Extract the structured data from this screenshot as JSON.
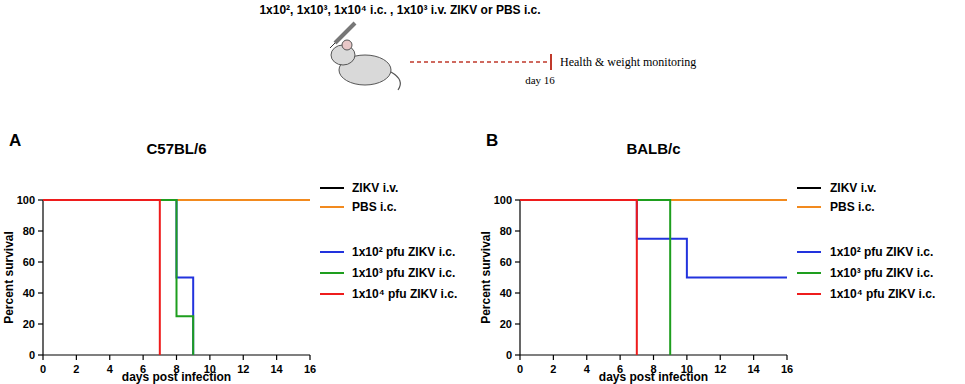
{
  "header": {
    "protocol": "1x10², 1x10³, 1x10⁴ i.c. , 1x10³ i.v. ZIKV or PBS i.c.",
    "monitoring": "Health & weight monitoring",
    "end": "day 16"
  },
  "chart_data": [
    {
      "type": "line",
      "panel": "A",
      "title": "C57BL/6",
      "x_label": "days post infection",
      "y_label": "Percent survival",
      "xlim": [
        0,
        16
      ],
      "xticks": [
        0,
        2,
        4,
        6,
        8,
        10,
        12,
        14,
        16
      ],
      "ylim": [
        0,
        100
      ],
      "yticks": [
        0,
        20,
        40,
        60,
        80,
        100
      ],
      "line_style": "step",
      "legend": "right",
      "grid": false,
      "series": [
        {
          "name": "ZIKV i.v.",
          "color": "#000000",
          "x": [
            0,
            16
          ],
          "values": [
            100,
            100
          ]
        },
        {
          "name": "PBS i.c.",
          "color": "#f28a1e",
          "x": [
            0,
            16
          ],
          "values": [
            100,
            100
          ]
        },
        {
          "name": "1x10² pfu ZIKV i.c.",
          "color": "#2233dd",
          "x": [
            0,
            8,
            9
          ],
          "values": [
            100,
            50,
            0
          ]
        },
        {
          "name": "1x10³ pfu ZIKV i.c.",
          "color": "#1e9e1e",
          "x": [
            0,
            8,
            9
          ],
          "values": [
            100,
            25,
            0
          ]
        },
        {
          "name": "1x10⁴ pfu ZIKV i.c.",
          "color": "#ee1c1c",
          "x": [
            0,
            7
          ],
          "values": [
            100,
            0
          ]
        }
      ]
    },
    {
      "type": "line",
      "panel": "B",
      "title": "BALB/c",
      "x_label": "days post infection",
      "y_label": "Percent survival",
      "xlim": [
        0,
        16
      ],
      "xticks": [
        0,
        2,
        4,
        6,
        8,
        10,
        12,
        14,
        16
      ],
      "ylim": [
        0,
        100
      ],
      "yticks": [
        0,
        20,
        40,
        60,
        80,
        100
      ],
      "line_style": "step",
      "legend": "right",
      "grid": false,
      "series": [
        {
          "name": "ZIKV i.v.",
          "color": "#000000",
          "x": [
            0,
            16
          ],
          "values": [
            100,
            100
          ]
        },
        {
          "name": "PBS i.c.",
          "color": "#f28a1e",
          "x": [
            0,
            16
          ],
          "values": [
            100,
            100
          ]
        },
        {
          "name": "1x10² pfu ZIKV i.c.",
          "color": "#2233dd",
          "x": [
            0,
            7,
            10,
            16
          ],
          "values": [
            100,
            75,
            50,
            50
          ]
        },
        {
          "name": "1x10³ pfu ZIKV i.c.",
          "color": "#1e9e1e",
          "x": [
            0,
            9
          ],
          "values": [
            100,
            0
          ]
        },
        {
          "name": "1x10⁴ pfu ZIKV i.c.",
          "color": "#ee1c1c",
          "x": [
            0,
            7
          ],
          "values": [
            100,
            0
          ]
        }
      ]
    }
  ]
}
